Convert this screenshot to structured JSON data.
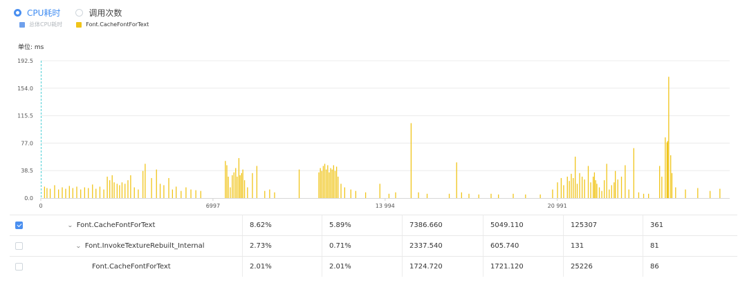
{
  "toggles": [
    {
      "label": "CPU耗时",
      "selected": true
    },
    {
      "label": "调用次数",
      "selected": false
    }
  ],
  "legend": [
    {
      "label": "总体CPU耗时",
      "color": "#6fa0ec",
      "enabled": false
    },
    {
      "label": "Font.CacheFontForText",
      "color": "#f0c419",
      "enabled": true
    }
  ],
  "unit_label": "单位: ms",
  "chart_data": {
    "type": "bar",
    "title": "",
    "xlabel": "",
    "ylabel": "",
    "x_range": [
      0,
      28000
    ],
    "x_ticks": [
      0,
      6997,
      13994,
      20991
    ],
    "x_tick_labels": [
      "0",
      "6997",
      "13 994",
      "20 991"
    ],
    "y_range": [
      0,
      192.5
    ],
    "y_ticks": [
      0,
      38.5,
      77,
      115.5,
      154,
      192.5
    ],
    "y_tick_labels": [
      "0.0",
      "38.5",
      "77.0",
      "115.5",
      "154.0",
      "192.5"
    ],
    "grid": true,
    "cursor_x": 0,
    "series": [
      {
        "name": "Font.CacheFontForText",
        "color": "#f0c419",
        "points": [
          [
            150,
            16
          ],
          [
            250,
            14
          ],
          [
            380,
            13
          ],
          [
            560,
            18
          ],
          [
            720,
            12
          ],
          [
            870,
            15
          ],
          [
            1010,
            13
          ],
          [
            1160,
            17
          ],
          [
            1300,
            14
          ],
          [
            1460,
            16
          ],
          [
            1620,
            12
          ],
          [
            1780,
            15
          ],
          [
            1930,
            14
          ],
          [
            2100,
            19
          ],
          [
            2240,
            13
          ],
          [
            2400,
            16
          ],
          [
            2560,
            12
          ],
          [
            2700,
            30
          ],
          [
            2800,
            25
          ],
          [
            2900,
            32
          ],
          [
            2980,
            22
          ],
          [
            3100,
            20
          ],
          [
            3200,
            18
          ],
          [
            3300,
            22
          ],
          [
            3420,
            20
          ],
          [
            3540,
            25
          ],
          [
            3650,
            32
          ],
          [
            3800,
            15
          ],
          [
            3960,
            12
          ],
          [
            4150,
            38
          ],
          [
            4240,
            48
          ],
          [
            4500,
            28
          ],
          [
            4700,
            40
          ],
          [
            4850,
            20
          ],
          [
            5000,
            18
          ],
          [
            5200,
            28
          ],
          [
            5350,
            12
          ],
          [
            5500,
            16
          ],
          [
            5700,
            10
          ],
          [
            5900,
            15
          ],
          [
            6100,
            12
          ],
          [
            6300,
            11
          ],
          [
            6500,
            10
          ],
          [
            7500,
            52
          ],
          [
            7560,
            46
          ],
          [
            7620,
            30
          ],
          [
            7700,
            15
          ],
          [
            7780,
            32
          ],
          [
            7850,
            36
          ],
          [
            7920,
            42
          ],
          [
            7980,
            30
          ],
          [
            8050,
            56
          ],
          [
            8100,
            32
          ],
          [
            8160,
            35
          ],
          [
            8210,
            40
          ],
          [
            8280,
            25
          ],
          [
            8400,
            15
          ],
          [
            8600,
            35
          ],
          [
            8780,
            45
          ],
          [
            9100,
            10
          ],
          [
            9300,
            12
          ],
          [
            9500,
            8
          ],
          [
            10500,
            40
          ],
          [
            11300,
            36
          ],
          [
            11360,
            42
          ],
          [
            11420,
            38
          ],
          [
            11480,
            45
          ],
          [
            11540,
            48
          ],
          [
            11600,
            40
          ],
          [
            11660,
            46
          ],
          [
            11720,
            36
          ],
          [
            11780,
            42
          ],
          [
            11840,
            40
          ],
          [
            11900,
            46
          ],
          [
            11960,
            38
          ],
          [
            12020,
            44
          ],
          [
            12080,
            30
          ],
          [
            12200,
            20
          ],
          [
            12350,
            15
          ],
          [
            12600,
            12
          ],
          [
            12800,
            10
          ],
          [
            13200,
            8
          ],
          [
            13780,
            20
          ],
          [
            14150,
            6
          ],
          [
            14420,
            8
          ],
          [
            15050,
            105
          ],
          [
            15350,
            8
          ],
          [
            15700,
            6
          ],
          [
            16600,
            6
          ],
          [
            16900,
            50
          ],
          [
            17100,
            8
          ],
          [
            17400,
            6
          ],
          [
            17800,
            5
          ],
          [
            18300,
            6
          ],
          [
            18600,
            5
          ],
          [
            19200,
            6
          ],
          [
            19700,
            5
          ],
          [
            20300,
            5
          ],
          [
            20800,
            12
          ],
          [
            21000,
            22
          ],
          [
            21150,
            28
          ],
          [
            21250,
            18
          ],
          [
            21400,
            30
          ],
          [
            21480,
            24
          ],
          [
            21560,
            34
          ],
          [
            21640,
            28
          ],
          [
            21720,
            58
          ],
          [
            21800,
            20
          ],
          [
            21900,
            35
          ],
          [
            22000,
            30
          ],
          [
            22100,
            26
          ],
          [
            22250,
            45
          ],
          [
            22350,
            22
          ],
          [
            22450,
            30
          ],
          [
            22500,
            36
          ],
          [
            22550,
            25
          ],
          [
            22600,
            20
          ],
          [
            22700,
            15
          ],
          [
            22800,
            10
          ],
          [
            22900,
            25
          ],
          [
            23000,
            48
          ],
          [
            23100,
            12
          ],
          [
            23200,
            18
          ],
          [
            23300,
            22
          ],
          [
            23350,
            38
          ],
          [
            23450,
            26
          ],
          [
            23600,
            30
          ],
          [
            23750,
            46
          ],
          [
            23900,
            12
          ],
          [
            24100,
            70
          ],
          [
            24300,
            8
          ],
          [
            24500,
            6
          ],
          [
            24700,
            6
          ],
          [
            25150,
            45
          ],
          [
            25240,
            30
          ],
          [
            25380,
            85
          ],
          [
            25450,
            78
          ],
          [
            25480,
            80
          ],
          [
            25520,
            170
          ],
          [
            25600,
            60
          ],
          [
            25650,
            35
          ],
          [
            25800,
            15
          ],
          [
            26200,
            12
          ],
          [
            26700,
            14
          ],
          [
            27200,
            10
          ],
          [
            27600,
            13
          ]
        ]
      }
    ]
  },
  "table": {
    "rows": [
      {
        "checked": true,
        "indent": 1,
        "expander": true,
        "name": "Font.CacheFontForText",
        "cols": [
          "8.62%",
          "5.89%",
          "7386.660",
          "5049.110",
          "125307",
          "361"
        ]
      },
      {
        "checked": false,
        "indent": 2,
        "expander": true,
        "name": "Font.InvokeTextureRebuilt_Internal",
        "cols": [
          "2.73%",
          "0.71%",
          "2337.540",
          "605.740",
          "131",
          "81"
        ]
      },
      {
        "checked": false,
        "indent": 3,
        "expander": false,
        "name": "Font.CacheFontForText",
        "cols": [
          "2.01%",
          "2.01%",
          "1724.720",
          "1721.120",
          "25226",
          "86"
        ]
      }
    ]
  }
}
